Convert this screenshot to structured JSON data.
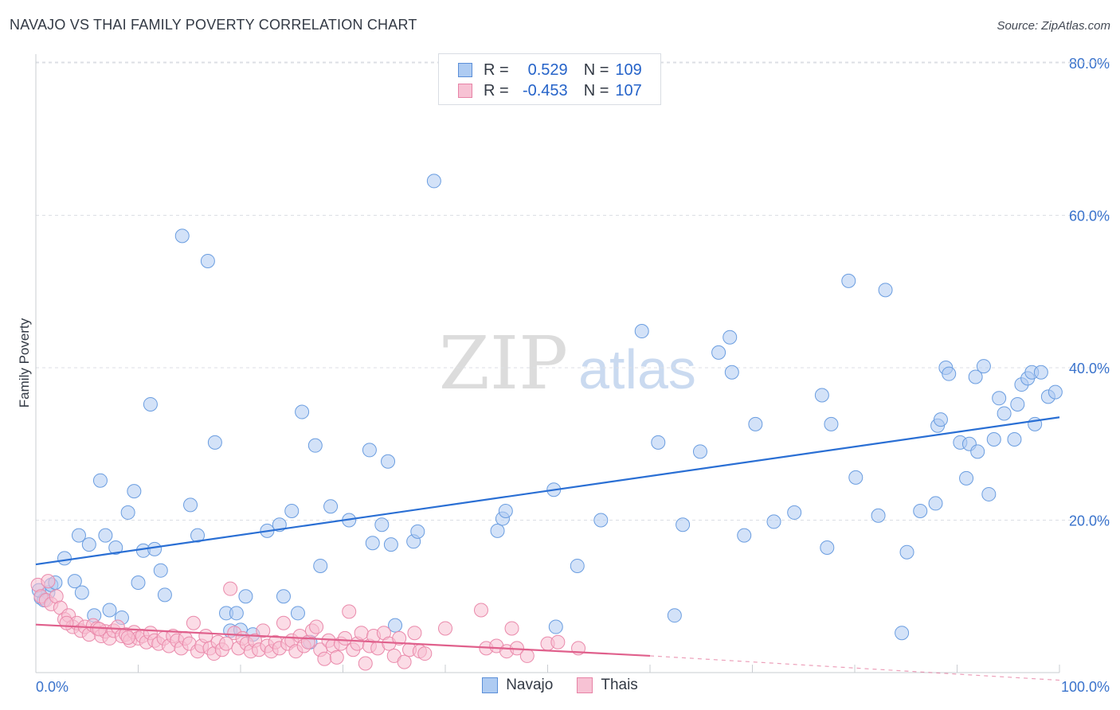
{
  "title": "NAVAJO VS THAI FAMILY POVERTY CORRELATION CHART",
  "source": "Source: ZipAtlas.com",
  "watermark": {
    "zip": "ZIP",
    "atlas": "atlas"
  },
  "legend": {
    "r_label": "R =",
    "n_label": "N =",
    "rows": [
      {
        "r": "0.529",
        "n": "109",
        "fill": "#aecbf2",
        "stroke": "#5b8fd8"
      },
      {
        "r": "-0.453",
        "n": "107",
        "fill": "#f7c2d4",
        "stroke": "#e783a6"
      }
    ]
  },
  "colors": {
    "navajo_fill": "#aecbf2",
    "navajo_stroke": "#6a9de0",
    "navajo_line": "#2a6fd4",
    "thai_fill": "#f7c0d2",
    "thai_stroke": "#ea8aab",
    "thai_line": "#e0608c",
    "axis_text": "#3a73cc",
    "grid": "#dcdfe4"
  },
  "chart_data": {
    "type": "scatter",
    "title": "NAVAJO VS THAI FAMILY POVERTY CORRELATION CHART",
    "xlabel": "",
    "ylabel": "Family Poverty",
    "xlim": [
      0,
      100
    ],
    "ylim": [
      0,
      85
    ],
    "x_tick_labels": [
      "0.0%",
      "100.0%"
    ],
    "y_ticks": [
      20,
      40,
      60,
      80
    ],
    "y_tick_labels": [
      "20.0%",
      "40.0%",
      "60.0%",
      "80.0%"
    ],
    "grid": true,
    "legend_position": "top-center",
    "series": [
      {
        "name": "Navajo",
        "r": 0.529,
        "n": 109,
        "trend": {
          "x": [
            0,
            100
          ],
          "y": [
            14.2,
            33.5
          ],
          "dashed_from": null
        },
        "points": [
          [
            0.5,
            9.8
          ],
          [
            1.2,
            10.5
          ],
          [
            0.8,
            9.5
          ],
          [
            1.5,
            11.5
          ],
          [
            2.8,
            15
          ],
          [
            3.8,
            12
          ],
          [
            4.2,
            18
          ],
          [
            4.5,
            10.5
          ],
          [
            5.2,
            16.8
          ],
          [
            5.7,
            7.5
          ],
          [
            6.3,
            25.2
          ],
          [
            6.8,
            18
          ],
          [
            7.2,
            8.2
          ],
          [
            7.8,
            16.4
          ],
          [
            8.4,
            7.2
          ],
          [
            9,
            21
          ],
          [
            9.6,
            23.8
          ],
          [
            10,
            11.8
          ],
          [
            10.5,
            16
          ],
          [
            11.2,
            35.2
          ],
          [
            11.6,
            16.2
          ],
          [
            12.2,
            13.4
          ],
          [
            12.6,
            10.2
          ],
          [
            14.3,
            57.3
          ],
          [
            15.1,
            22
          ],
          [
            15.8,
            18
          ],
          [
            16.8,
            54
          ],
          [
            17.5,
            30.2
          ],
          [
            18.6,
            7.8
          ],
          [
            19,
            5.5
          ],
          [
            19.6,
            7.8
          ],
          [
            20,
            5.6
          ],
          [
            20.5,
            10
          ],
          [
            21.2,
            5
          ],
          [
            22.6,
            18.6
          ],
          [
            23.8,
            19.4
          ],
          [
            24.2,
            10
          ],
          [
            25,
            21.2
          ],
          [
            25.6,
            7.8
          ],
          [
            26,
            34.2
          ],
          [
            26.8,
            4
          ],
          [
            27.3,
            29.8
          ],
          [
            27.8,
            14
          ],
          [
            28.8,
            21.8
          ],
          [
            30.6,
            20
          ],
          [
            32.6,
            29.2
          ],
          [
            32.9,
            17
          ],
          [
            33.8,
            19.4
          ],
          [
            34.4,
            27.7
          ],
          [
            34.7,
            16.8
          ],
          [
            35.1,
            6.2
          ],
          [
            36.9,
            17.2
          ],
          [
            37.3,
            18.5
          ],
          [
            38.9,
            64.5
          ],
          [
            45.1,
            18.6
          ],
          [
            45.6,
            20.2
          ],
          [
            45.9,
            21.2
          ],
          [
            50.6,
            24
          ],
          [
            50.8,
            6
          ],
          [
            52.9,
            14
          ],
          [
            55.2,
            20
          ],
          [
            59.2,
            44.8
          ],
          [
            60.8,
            30.2
          ],
          [
            62.4,
            7.5
          ],
          [
            63.2,
            19.4
          ],
          [
            64.9,
            29
          ],
          [
            66.7,
            42
          ],
          [
            67.8,
            44
          ],
          [
            68,
            39.4
          ],
          [
            69.2,
            18
          ],
          [
            70.3,
            32.6
          ],
          [
            72.1,
            19.8
          ],
          [
            74.1,
            21
          ],
          [
            76.8,
            36.4
          ],
          [
            77.3,
            16.4
          ],
          [
            77.7,
            32.6
          ],
          [
            79.4,
            51.4
          ],
          [
            80.1,
            25.6
          ],
          [
            82.3,
            20.6
          ],
          [
            83,
            50.2
          ],
          [
            84.6,
            5.2
          ],
          [
            85.1,
            15.8
          ],
          [
            86.4,
            21.2
          ],
          [
            87.9,
            22.2
          ],
          [
            88.1,
            32.4
          ],
          [
            88.4,
            33.2
          ],
          [
            88.9,
            40
          ],
          [
            89.2,
            39.2
          ],
          [
            90.3,
            30.2
          ],
          [
            90.9,
            25.5
          ],
          [
            91.2,
            30
          ],
          [
            91.8,
            38.8
          ],
          [
            92,
            29
          ],
          [
            92.6,
            40.2
          ],
          [
            93.1,
            23.4
          ],
          [
            93.6,
            30.6
          ],
          [
            94.1,
            36
          ],
          [
            94.6,
            34
          ],
          [
            95.6,
            30.6
          ],
          [
            95.9,
            35.2
          ],
          [
            96.3,
            37.8
          ],
          [
            96.9,
            38.6
          ],
          [
            97.3,
            39.4
          ],
          [
            97.6,
            32.6
          ],
          [
            98.2,
            39.4
          ],
          [
            98.9,
            36.2
          ],
          [
            99.6,
            36.8
          ],
          [
            0.3,
            10.8
          ],
          [
            1.9,
            11.8
          ]
        ]
      },
      {
        "name": "Thais",
        "r": -0.453,
        "n": 107,
        "trend": {
          "x": [
            0,
            60
          ],
          "y": [
            6.3,
            2.2
          ],
          "dashed_from": 60,
          "dashed_to": [
            100,
            -1
          ]
        },
        "points": [
          [
            0.2,
            11.5
          ],
          [
            0.5,
            10
          ],
          [
            1,
            9.5
          ],
          [
            1.5,
            9
          ],
          [
            2,
            10
          ],
          [
            2.4,
            8.5
          ],
          [
            2.8,
            7
          ],
          [
            3.2,
            7.5
          ],
          [
            3.6,
            6
          ],
          [
            4,
            6.5
          ],
          [
            4.4,
            5.5
          ],
          [
            4.8,
            6
          ],
          [
            5.2,
            5
          ],
          [
            5.6,
            6.2
          ],
          [
            6,
            5.8
          ],
          [
            6.4,
            4.8
          ],
          [
            6.8,
            5.4
          ],
          [
            7.2,
            4.5
          ],
          [
            7.6,
            5.5
          ],
          [
            8,
            6
          ],
          [
            8.4,
            4.8
          ],
          [
            8.8,
            5
          ],
          [
            9.2,
            4.2
          ],
          [
            9.6,
            5.3
          ],
          [
            10,
            4.5
          ],
          [
            10.4,
            4.8
          ],
          [
            10.8,
            4
          ],
          [
            11.2,
            5.2
          ],
          [
            11.6,
            4.2
          ],
          [
            12,
            3.8
          ],
          [
            12.5,
            4.5
          ],
          [
            13,
            3.5
          ],
          [
            13.4,
            4.8
          ],
          [
            13.8,
            4.2
          ],
          [
            14.2,
            3.2
          ],
          [
            14.6,
            4.5
          ],
          [
            15,
            3.8
          ],
          [
            15.4,
            6.5
          ],
          [
            15.8,
            2.8
          ],
          [
            16.2,
            3.5
          ],
          [
            16.6,
            4.8
          ],
          [
            17,
            3.2
          ],
          [
            17.4,
            2.5
          ],
          [
            17.8,
            4
          ],
          [
            18.2,
            3
          ],
          [
            18.6,
            3.8
          ],
          [
            19,
            11
          ],
          [
            19.4,
            5.2
          ],
          [
            19.8,
            3.2
          ],
          [
            20.2,
            4.5
          ],
          [
            20.6,
            3.8
          ],
          [
            21,
            2.8
          ],
          [
            21.4,
            4.2
          ],
          [
            21.8,
            3
          ],
          [
            22.2,
            5.5
          ],
          [
            22.6,
            3.5
          ],
          [
            23,
            2.8
          ],
          [
            23.4,
            4
          ],
          [
            23.8,
            3.2
          ],
          [
            24.2,
            6.5
          ],
          [
            24.6,
            3.8
          ],
          [
            25,
            4.2
          ],
          [
            25.4,
            2.8
          ],
          [
            25.8,
            4.8
          ],
          [
            26.2,
            3.5
          ],
          [
            26.6,
            4
          ],
          [
            27,
            5.5
          ],
          [
            27.4,
            6
          ],
          [
            27.8,
            3
          ],
          [
            28.2,
            1.8
          ],
          [
            28.6,
            4.2
          ],
          [
            29,
            3.5
          ],
          [
            29.4,
            2
          ],
          [
            29.8,
            3.8
          ],
          [
            30.2,
            4.5
          ],
          [
            30.6,
            8
          ],
          [
            31,
            3
          ],
          [
            31.4,
            3.8
          ],
          [
            31.8,
            5.2
          ],
          [
            32.2,
            1.2
          ],
          [
            32.6,
            3.5
          ],
          [
            33,
            4.8
          ],
          [
            33.4,
            3.2
          ],
          [
            34,
            5.2
          ],
          [
            34.5,
            3.8
          ],
          [
            35,
            2.2
          ],
          [
            35.5,
            4.5
          ],
          [
            36,
            1.4
          ],
          [
            36.5,
            3
          ],
          [
            37,
            5.2
          ],
          [
            37.5,
            2.8
          ],
          [
            38,
            2.5
          ],
          [
            40,
            5.8
          ],
          [
            43.5,
            8.2
          ],
          [
            44,
            3.2
          ],
          [
            45,
            3.5
          ],
          [
            46,
            2.8
          ],
          [
            46.5,
            5.8
          ],
          [
            47,
            3.2
          ],
          [
            48,
            2.2
          ],
          [
            50,
            3.8
          ],
          [
            51,
            4
          ],
          [
            53,
            3.2
          ],
          [
            1.2,
            12
          ],
          [
            3,
            6.5
          ],
          [
            6.2,
            5.7
          ],
          [
            9,
            4.6
          ]
        ]
      }
    ]
  }
}
